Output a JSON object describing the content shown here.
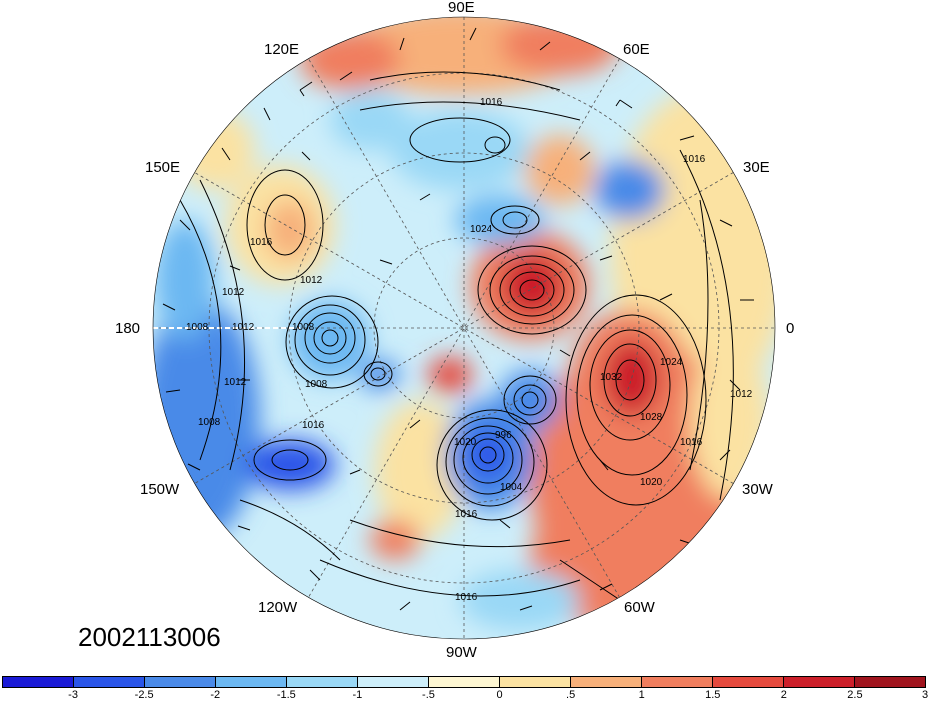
{
  "timestamp": "2002113006",
  "longitude_labels": [
    "90E",
    "60E",
    "30E",
    "0",
    "30W",
    "60W",
    "90W",
    "120W",
    "150W",
    "180",
    "150E",
    "120E"
  ],
  "isobar_labels": [
    "1016",
    "1016",
    "1024",
    "1016",
    "1012",
    "1012",
    "1008",
    "1012",
    "1008",
    "1008",
    "1012",
    "1008",
    "1016",
    "1020",
    "996",
    "1004",
    "1016",
    "1032",
    "1028",
    "1024",
    "1020",
    "1016",
    "1012",
    "1016"
  ],
  "colorbar": {
    "colors": [
      "#1a1ad6",
      "#2a55e8",
      "#4a8ae8",
      "#6cb8f2",
      "#9ad8f6",
      "#cdeefa",
      "#fdf6d2",
      "#fbe2a2",
      "#f7b07a",
      "#f07e5e",
      "#e54a3e",
      "#cc1f2a",
      "#a0141e"
    ],
    "ticks": [
      "-3",
      "-2.5",
      "-2",
      "-1.5",
      "-1",
      "-.5",
      "0",
      ".5",
      "1",
      "1.5",
      "2",
      "2.5",
      "3"
    ]
  },
  "anomaly_colors": {
    "base": "#cdeefa",
    "weak_cold": "#9ad8f6",
    "cold": "#6cb8f2",
    "strong_cold": "#4a8ae8",
    "very_cold": "#2a55e8",
    "weak_warm": "#fdf6d2",
    "warm": "#fbe2a2",
    "strong_warm": "#f07e5e",
    "very_warm": "#cc1f2a"
  }
}
